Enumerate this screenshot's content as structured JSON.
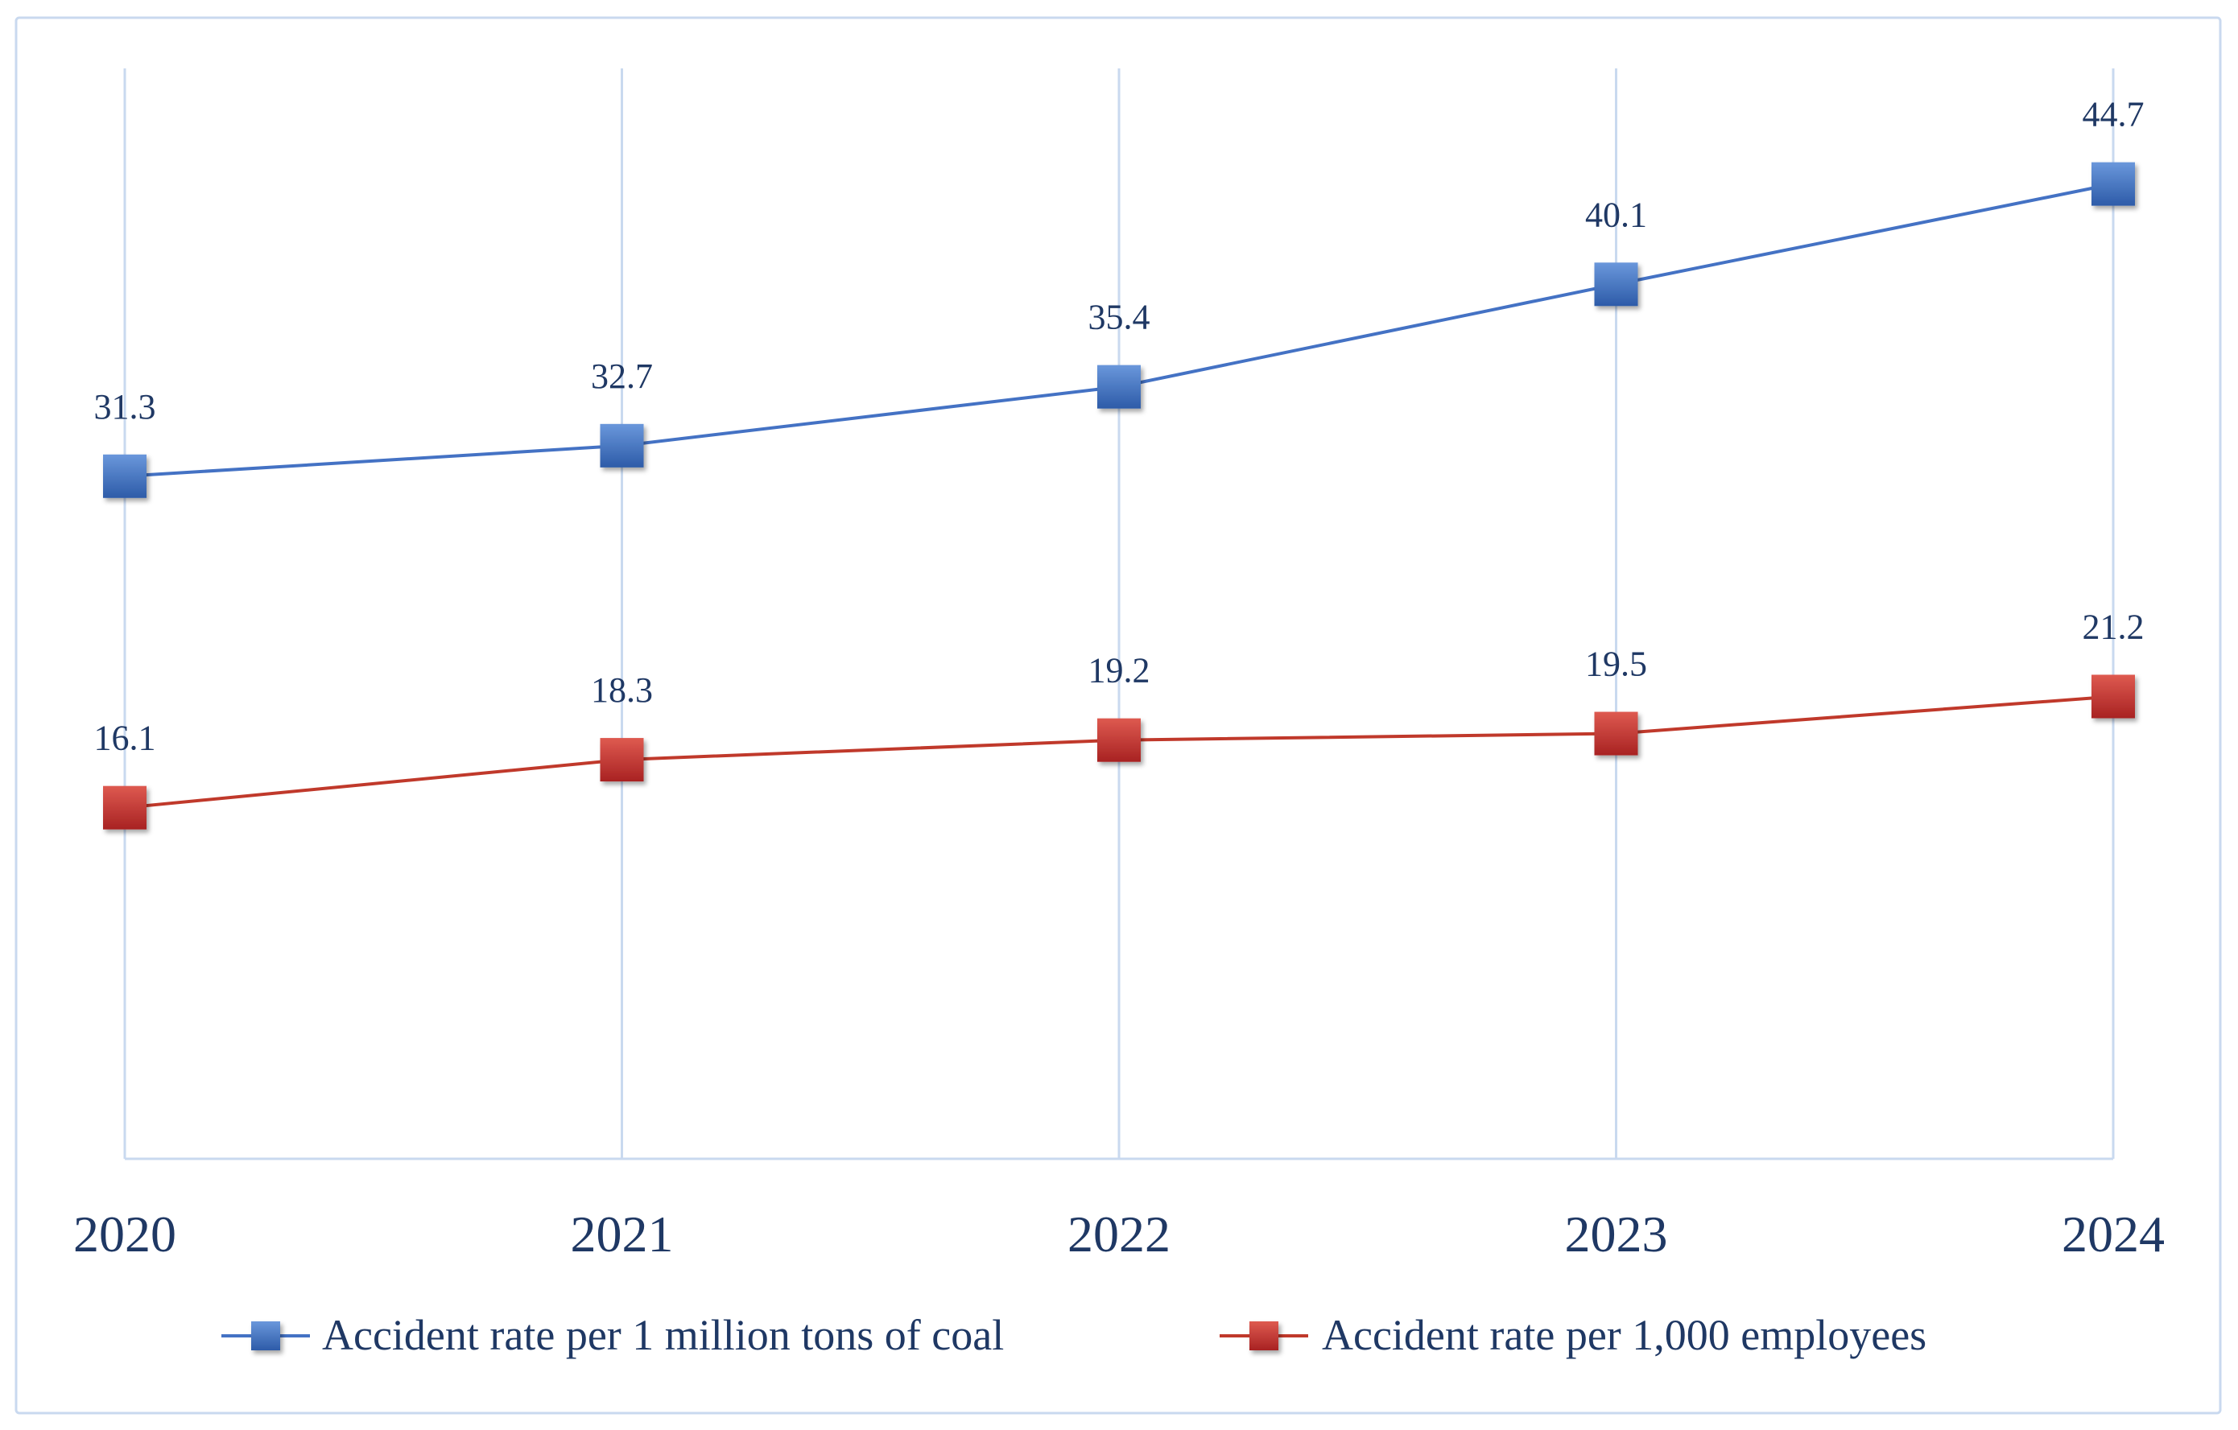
{
  "chart_data": {
    "type": "line",
    "title": "",
    "xlabel": "",
    "ylabel": "",
    "categories": [
      "2020",
      "2021",
      "2022",
      "2023",
      "2024"
    ],
    "ylim": [
      0,
      50
    ],
    "grid": "vertical",
    "legend_position": "bottom",
    "series": [
      {
        "name": "Accident rate per 1 million tons of coal",
        "values": [
          31.3,
          32.7,
          35.4,
          40.1,
          44.7
        ],
        "labels": [
          "31.3",
          "32.7",
          "35.4",
          "40.1",
          "44.7"
        ],
        "color": "#4472C4",
        "marker": "square"
      },
      {
        "name": "Accident rate per 1,000 employees",
        "values": [
          16.1,
          18.3,
          19.2,
          19.5,
          21.2
        ],
        "labels": [
          "16.1",
          "18.3",
          "19.2",
          "19.5",
          "21.2"
        ],
        "color": "#C0392B",
        "marker": "square"
      }
    ]
  },
  "colors": {
    "gridline": "#C9D9EF",
    "frame": "#C9D9EF",
    "text": "#1F3864"
  }
}
